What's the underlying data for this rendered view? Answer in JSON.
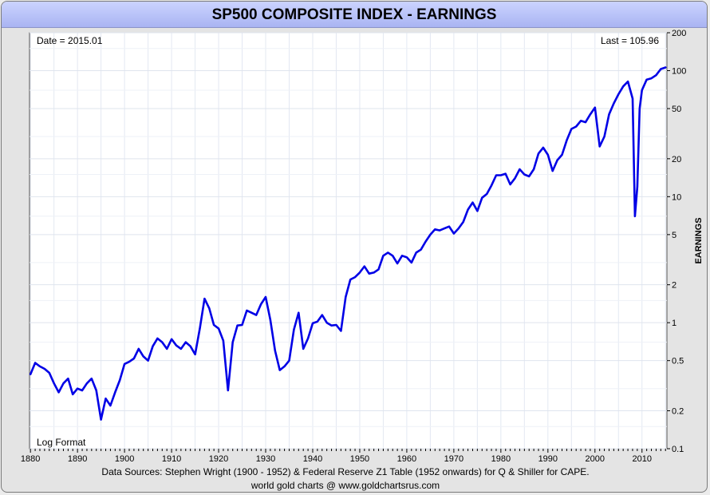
{
  "chart_data": {
    "type": "line",
    "title": "SP500 COMPOSITE INDEX - EARNINGS",
    "ylabel": "EARNINGS",
    "y_scale": "log",
    "ylim": [
      0.1,
      200
    ],
    "xlim": [
      1879.8,
      2015.3
    ],
    "x_ticks": [
      1880,
      1890,
      1900,
      1910,
      1920,
      1930,
      1940,
      1950,
      1960,
      1970,
      1980,
      1990,
      2000,
      2010
    ],
    "y_ticks": [
      0.1,
      0.2,
      0.5,
      1,
      2,
      5,
      10,
      20,
      50,
      100,
      200
    ],
    "grid": true,
    "annotations": {
      "date": "Date = 2015.01",
      "last": "Last = 105.96",
      "format": "Log Format"
    },
    "series": [
      {
        "color": "#0000e6",
        "x": [
          1880,
          1881,
          1882,
          1883,
          1884,
          1885,
          1886,
          1887,
          1888,
          1889,
          1890,
          1891,
          1892,
          1893,
          1894,
          1895,
          1896,
          1897,
          1898,
          1899,
          1900,
          1901,
          1902,
          1903,
          1904,
          1905,
          1906,
          1907,
          1908,
          1909,
          1910,
          1911,
          1912,
          1913,
          1914,
          1915,
          1916,
          1917,
          1918,
          1919,
          1920,
          1921,
          1922,
          1923,
          1924,
          1925,
          1926,
          1927,
          1928,
          1929,
          1930,
          1931,
          1932,
          1933,
          1934,
          1935,
          1936,
          1937,
          1938,
          1939,
          1940,
          1941,
          1942,
          1943,
          1944,
          1945,
          1946,
          1947,
          1948,
          1949,
          1950,
          1951,
          1952,
          1953,
          1954,
          1955,
          1956,
          1957,
          1958,
          1959,
          1960,
          1961,
          1962,
          1963,
          1964,
          1965,
          1966,
          1967,
          1968,
          1969,
          1970,
          1971,
          1972,
          1973,
          1974,
          1975,
          1976,
          1977,
          1978,
          1979,
          1980,
          1981,
          1982,
          1983,
          1984,
          1985,
          1986,
          1987,
          1988,
          1989,
          1990,
          1991,
          1992,
          1993,
          1994,
          1995,
          1996,
          1997,
          1998,
          1999,
          2000,
          2001,
          2002,
          2003,
          2004,
          2005,
          2006,
          2007,
          2008,
          2008.5,
          2009,
          2009.5,
          2010,
          2011,
          2012,
          2013,
          2014,
          2015
        ],
        "values": [
          0.39,
          0.48,
          0.45,
          0.43,
          0.4,
          0.33,
          0.28,
          0.33,
          0.36,
          0.27,
          0.3,
          0.29,
          0.33,
          0.36,
          0.29,
          0.17,
          0.25,
          0.22,
          0.28,
          0.35,
          0.47,
          0.49,
          0.52,
          0.62,
          0.54,
          0.5,
          0.65,
          0.75,
          0.7,
          0.62,
          0.74,
          0.66,
          0.62,
          0.7,
          0.65,
          0.56,
          0.9,
          1.55,
          1.3,
          0.96,
          0.9,
          0.72,
          0.29,
          0.7,
          0.95,
          0.96,
          1.25,
          1.2,
          1.15,
          1.4,
          1.6,
          1.05,
          0.6,
          0.42,
          0.45,
          0.5,
          0.88,
          1.2,
          0.62,
          0.75,
          0.99,
          1.02,
          1.15,
          1.0,
          0.95,
          0.96,
          0.86,
          1.6,
          2.2,
          2.3,
          2.5,
          2.8,
          2.45,
          2.5,
          2.65,
          3.4,
          3.6,
          3.4,
          2.95,
          3.4,
          3.3,
          3.0,
          3.6,
          3.8,
          4.4,
          5.0,
          5.5,
          5.4,
          5.6,
          5.8,
          5.1,
          5.6,
          6.3,
          7.9,
          9.0,
          7.7,
          9.8,
          10.5,
          12.3,
          14.8,
          14.8,
          15.2,
          12.5,
          14.0,
          16.5,
          15.0,
          14.5,
          16.5,
          22.0,
          24.5,
          21.5,
          16.0,
          19.5,
          21.5,
          28.0,
          34.5,
          36.0,
          40.0,
          39.0,
          45.0,
          51.0,
          25.0,
          30.0,
          45.0,
          55.0,
          65.0,
          75.0,
          82.0,
          60.0,
          7.0,
          12.0,
          50.0,
          70.0,
          85.0,
          87.0,
          92.0,
          103.0,
          105.96
        ]
      }
    ],
    "footer": {
      "sources": "Data Sources: Stephen Wright (1900 - 1952) & Federal Reserve Z1 Table (1952 onwards) for Q & Shiller for CAPE.",
      "site": "world gold charts @ www.goldchartsrus.com"
    }
  }
}
